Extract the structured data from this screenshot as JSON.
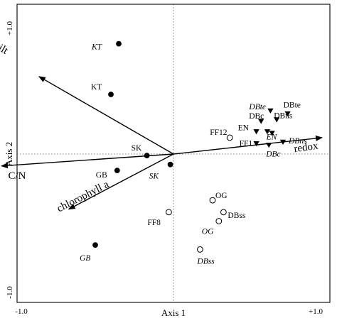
{
  "chart_data": {
    "type": "scatter",
    "title": "",
    "xlabel": "Axis 1",
    "ylabel": "Axis 2",
    "xlim": [
      -1.0,
      1.0
    ],
    "ylim": [
      -1.0,
      1.0
    ],
    "xticks": [
      "-1.0",
      "+1.0"
    ],
    "yticks": [
      "+1.0",
      "-1.0"
    ],
    "grid": false,
    "legend": "none",
    "reference_lines": "dotted lines at x = 0 and y = 0",
    "colors": {
      "ink": "#000000",
      "background": "#ffffff"
    },
    "vectors": [
      {
        "label": "silt",
        "x": -0.86,
        "y": 0.52
      },
      {
        "label": "C/N",
        "x": -1.1,
        "y": -0.08
      },
      {
        "label": "chlorophyll a",
        "x": -0.67,
        "y": -0.37
      },
      {
        "label": "redox",
        "x": 0.95,
        "y": 0.11
      }
    ],
    "series": [
      {
        "marker": "filled-circle",
        "points": [
          {
            "label": "KT",
            "italic": true,
            "x": -0.35,
            "y": 0.74
          },
          {
            "label": "KT",
            "italic": false,
            "x": -0.4,
            "y": 0.4
          },
          {
            "label": "SK",
            "italic": false,
            "x": -0.17,
            "y": -0.01
          },
          {
            "label": "SK",
            "italic": true,
            "x": -0.02,
            "y": -0.07
          },
          {
            "label": "GB",
            "italic": false,
            "x": -0.36,
            "y": -0.11
          },
          {
            "label": "GB",
            "italic": true,
            "x": -0.5,
            "y": -0.61
          }
        ]
      },
      {
        "marker": "open-circle",
        "points": [
          {
            "label": "FF12",
            "italic": false,
            "x": 0.36,
            "y": 0.11
          },
          {
            "label": "FF8",
            "italic": false,
            "x": -0.03,
            "y": -0.39
          },
          {
            "label": "OG",
            "italic": false,
            "x": 0.25,
            "y": -0.31
          },
          {
            "label": "DBss",
            "italic": false,
            "x": 0.32,
            "y": -0.39
          },
          {
            "label": "OG",
            "italic": true,
            "x": 0.29,
            "y": -0.45
          },
          {
            "label": "DBss",
            "italic": true,
            "x": 0.17,
            "y": -0.64
          }
        ]
      },
      {
        "marker": "filled-triangle-down",
        "points": [
          {
            "label": "DBte",
            "italic": true,
            "x": 0.62,
            "y": 0.29
          },
          {
            "label": "DBte",
            "italic": false,
            "x": 0.73,
            "y": 0.27
          },
          {
            "label": "DBns",
            "italic": false,
            "x": 0.66,
            "y": 0.23
          },
          {
            "label": "DBc",
            "italic": false,
            "x": 0.56,
            "y": 0.22
          },
          {
            "label": "EN",
            "italic": false,
            "x": 0.53,
            "y": 0.15
          },
          {
            "label": "",
            "italic": false,
            "x": 0.6,
            "y": 0.15
          },
          {
            "label": "EN",
            "italic": true,
            "x": 0.63,
            "y": 0.14
          },
          {
            "label": "FF1",
            "italic": false,
            "x": 0.53,
            "y": 0.07
          },
          {
            "label": "DBns",
            "italic": true,
            "x": 0.7,
            "y": 0.08
          },
          {
            "label": "DBc",
            "italic": true,
            "x": 0.61,
            "y": 0.06
          }
        ]
      }
    ]
  }
}
